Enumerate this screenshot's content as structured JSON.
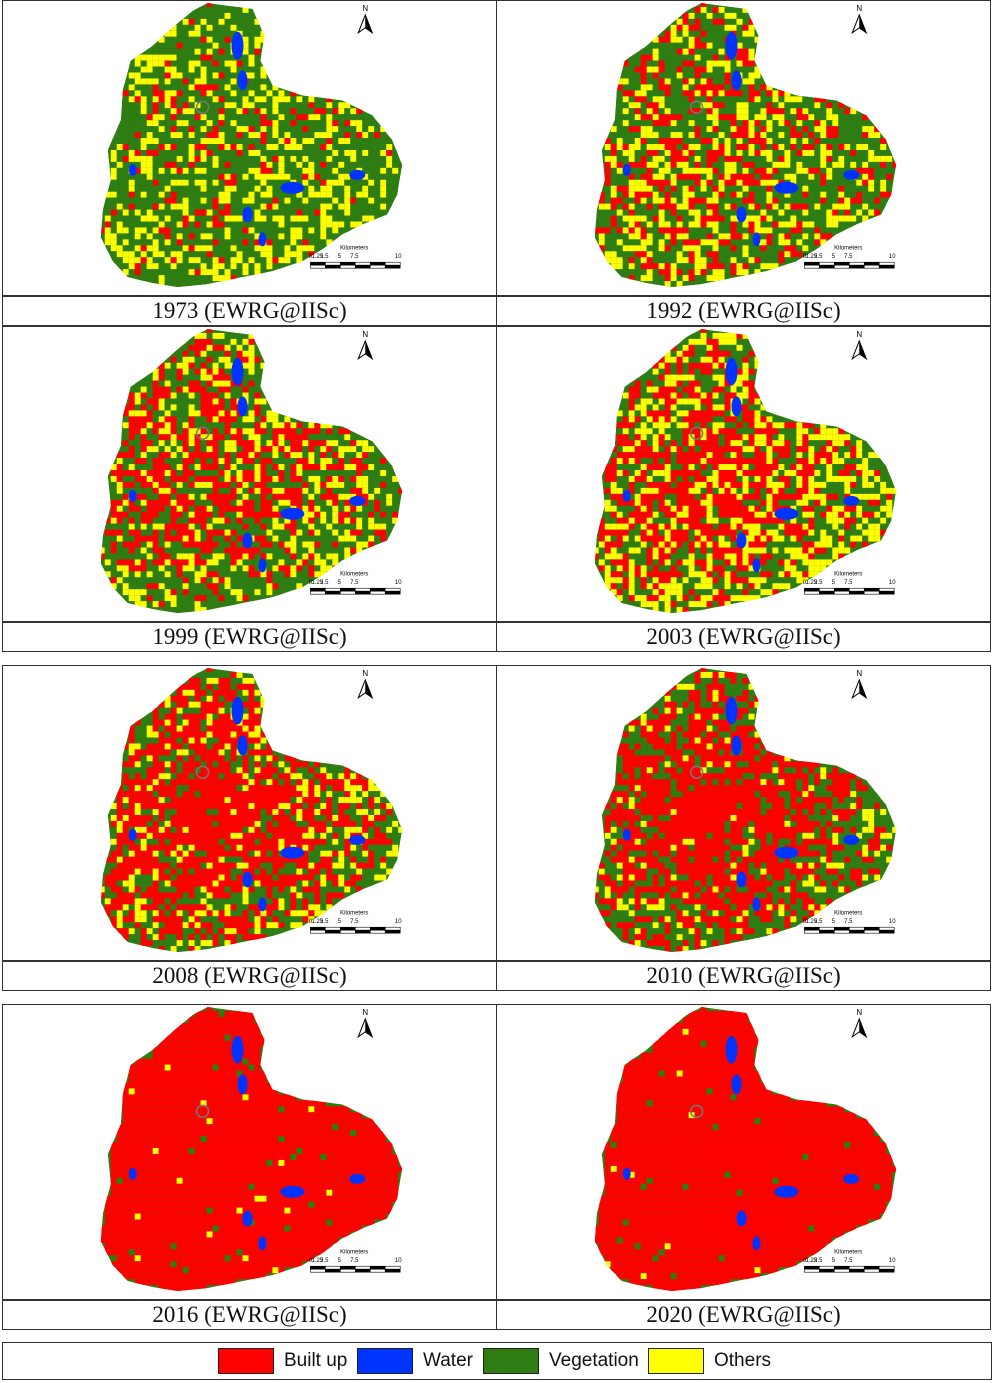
{
  "panels": [
    {
      "caption": "1973 (EWRG@IISc)",
      "mix": {
        "builtup": 0.1,
        "water": 0.03,
        "vegetation": 0.55,
        "others": 0.32
      }
    },
    {
      "caption": "1992 (EWRG@IISc)",
      "mix": {
        "builtup": 0.28,
        "water": 0.03,
        "vegetation": 0.42,
        "others": 0.27
      }
    },
    {
      "caption": "1999 (EWRG@IISc)",
      "mix": {
        "builtup": 0.38,
        "water": 0.03,
        "vegetation": 0.37,
        "others": 0.22
      }
    },
    {
      "caption": "2003 (EWRG@IISc)",
      "mix": {
        "builtup": 0.4,
        "water": 0.03,
        "vegetation": 0.25,
        "others": 0.32
      }
    },
    {
      "caption": "2008 (EWRG@IISc)",
      "mix": {
        "builtup": 0.55,
        "water": 0.03,
        "vegetation": 0.26,
        "others": 0.16
      }
    },
    {
      "caption": "2010 (EWRG@IISc)",
      "mix": {
        "builtup": 0.62,
        "water": 0.03,
        "vegetation": 0.27,
        "others": 0.08
      }
    },
    {
      "caption": "2016 (EWRG@IISc)",
      "mix": {
        "builtup": 0.88,
        "water": 0.03,
        "vegetation": 0.07,
        "others": 0.02
      }
    },
    {
      "caption": "2020 (EWRG@IISc)",
      "mix": {
        "builtup": 0.9,
        "water": 0.04,
        "vegetation": 0.05,
        "others": 0.01
      }
    }
  ],
  "north_label": "N",
  "scalebar": {
    "title": "Kilometers",
    "ticks": [
      "0",
      "1.25",
      "2.5",
      "5",
      "7.5",
      "10"
    ]
  },
  "legend": [
    {
      "label": "Built up",
      "color": "#ff0000"
    },
    {
      "label": "Water",
      "color": "#0033ff"
    },
    {
      "label": "Vegetation",
      "color": "#2e7d12"
    },
    {
      "label": "Others",
      "color": "#ffff00"
    }
  ]
}
